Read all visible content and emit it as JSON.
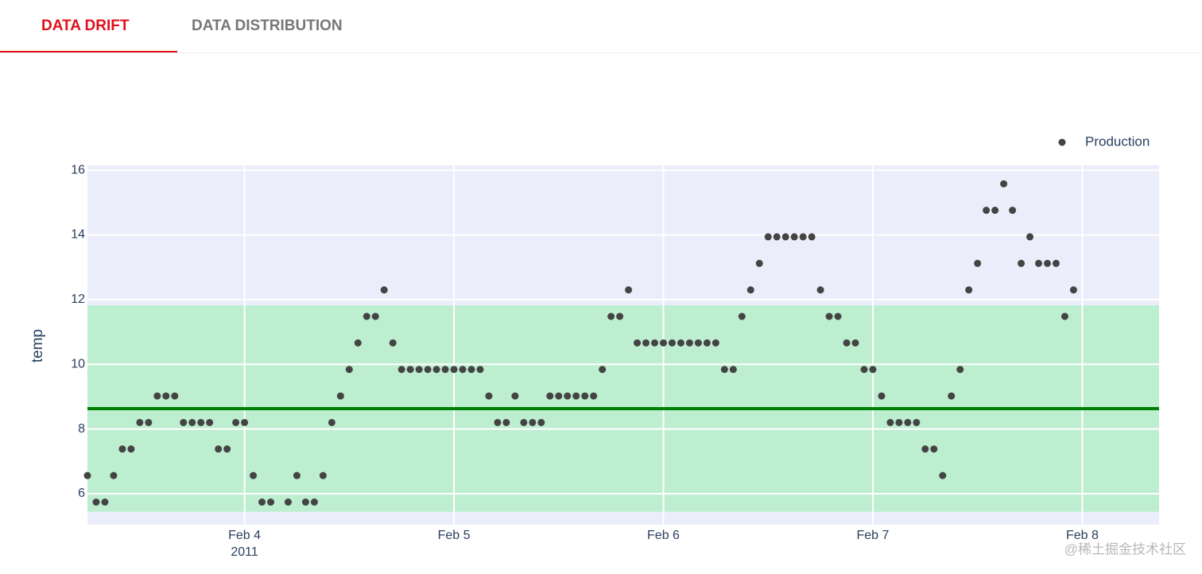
{
  "tabs": [
    {
      "label": "DATA DRIFT",
      "active": true
    },
    {
      "label": "DATA DISTRIBUTION",
      "active": false
    }
  ],
  "watermark": "@稀土掘金技术社区",
  "chart_data": {
    "type": "scatter",
    "yaxis_title": "temp",
    "x": [
      "2011-02-03 06:00",
      "2011-02-03 07:00",
      "2011-02-03 08:00",
      "2011-02-03 09:00",
      "2011-02-03 10:00",
      "2011-02-03 11:00",
      "2011-02-03 12:00",
      "2011-02-03 13:00",
      "2011-02-03 14:00",
      "2011-02-03 15:00",
      "2011-02-03 16:00",
      "2011-02-03 17:00",
      "2011-02-03 18:00",
      "2011-02-03 19:00",
      "2011-02-03 20:00",
      "2011-02-03 21:00",
      "2011-02-03 22:00",
      "2011-02-03 23:00",
      "2011-02-04 00:00",
      "2011-02-04 01:00",
      "2011-02-04 02:00",
      "2011-02-04 03:00",
      "2011-02-04 05:00",
      "2011-02-04 06:00",
      "2011-02-04 07:00",
      "2011-02-04 08:00",
      "2011-02-04 09:00",
      "2011-02-04 10:00",
      "2011-02-04 11:00",
      "2011-02-04 12:00",
      "2011-02-04 13:00",
      "2011-02-04 14:00",
      "2011-02-04 15:00",
      "2011-02-04 16:00",
      "2011-02-04 17:00",
      "2011-02-04 18:00",
      "2011-02-04 19:00",
      "2011-02-04 20:00",
      "2011-02-04 21:00",
      "2011-02-04 22:00",
      "2011-02-04 23:00",
      "2011-02-05 00:00",
      "2011-02-05 01:00",
      "2011-02-05 02:00",
      "2011-02-05 03:00",
      "2011-02-05 04:00",
      "2011-02-05 05:00",
      "2011-02-05 06:00",
      "2011-02-05 07:00",
      "2011-02-05 08:00",
      "2011-02-05 09:00",
      "2011-02-05 10:00",
      "2011-02-05 11:00",
      "2011-02-05 12:00",
      "2011-02-05 13:00",
      "2011-02-05 14:00",
      "2011-02-05 15:00",
      "2011-02-05 16:00",
      "2011-02-05 17:00",
      "2011-02-05 18:00",
      "2011-02-05 19:00",
      "2011-02-05 20:00",
      "2011-02-05 21:00",
      "2011-02-05 22:00",
      "2011-02-05 23:00",
      "2011-02-06 00:00",
      "2011-02-06 01:00",
      "2011-02-06 02:00",
      "2011-02-06 03:00",
      "2011-02-06 04:00",
      "2011-02-06 05:00",
      "2011-02-06 06:00",
      "2011-02-06 07:00",
      "2011-02-06 08:00",
      "2011-02-06 09:00",
      "2011-02-06 10:00",
      "2011-02-06 11:00",
      "2011-02-06 12:00",
      "2011-02-06 13:00",
      "2011-02-06 14:00",
      "2011-02-06 15:00",
      "2011-02-06 16:00",
      "2011-02-06 17:00",
      "2011-02-06 18:00",
      "2011-02-06 19:00",
      "2011-02-06 20:00",
      "2011-02-06 21:00",
      "2011-02-06 22:00",
      "2011-02-06 23:00",
      "2011-02-07 00:00",
      "2011-02-07 01:00",
      "2011-02-07 02:00",
      "2011-02-07 03:00",
      "2011-02-07 04:00",
      "2011-02-07 05:00",
      "2011-02-07 06:00",
      "2011-02-07 07:00",
      "2011-02-07 08:00",
      "2011-02-07 09:00",
      "2011-02-07 10:00",
      "2011-02-07 11:00",
      "2011-02-07 12:00",
      "2011-02-07 13:00",
      "2011-02-07 14:00",
      "2011-02-07 15:00",
      "2011-02-07 16:00",
      "2011-02-07 17:00",
      "2011-02-07 18:00",
      "2011-02-07 19:00",
      "2011-02-07 20:00",
      "2011-02-07 21:00",
      "2011-02-07 22:00",
      "2011-02-07 23:00"
    ],
    "series": [
      {
        "name": "Production",
        "color": "#444444",
        "values": [
          6.56,
          5.74,
          5.74,
          6.56,
          7.38,
          7.38,
          8.2,
          8.2,
          9.02,
          9.02,
          9.02,
          8.2,
          8.2,
          8.2,
          8.2,
          7.38,
          7.38,
          8.2,
          8.2,
          6.56,
          5.74,
          5.74,
          5.74,
          6.56,
          5.74,
          5.74,
          6.56,
          8.2,
          9.02,
          9.84,
          10.66,
          11.48,
          11.48,
          12.3,
          10.66,
          9.84,
          9.84,
          9.84,
          9.84,
          9.84,
          9.84,
          9.84,
          9.84,
          9.84,
          9.84,
          9.02,
          8.2,
          8.2,
          9.02,
          8.2,
          8.2,
          8.2,
          9.02,
          9.02,
          9.02,
          9.02,
          9.02,
          9.02,
          9.84,
          11.48,
          11.48,
          12.3,
          10.66,
          10.66,
          10.66,
          10.66,
          10.66,
          10.66,
          10.66,
          10.66,
          10.66,
          10.66,
          9.84,
          9.84,
          11.48,
          12.3,
          13.12,
          13.94,
          13.94,
          13.94,
          13.94,
          13.94,
          13.94,
          12.3,
          11.48,
          11.48,
          10.66,
          10.66,
          9.84,
          9.84,
          9.02,
          8.2,
          8.2,
          8.2,
          8.2,
          7.38,
          7.38,
          6.56,
          9.02,
          9.84,
          12.3,
          13.12,
          14.76,
          14.76,
          15.58,
          14.76,
          13.12,
          13.94,
          13.12,
          13.12,
          13.12,
          11.48,
          12.3
        ]
      }
    ],
    "xlim": [
      "2011-02-03 06:00",
      "2011-02-08 08:48"
    ],
    "xticks": [
      {
        "value": "2011-02-04 00:00",
        "label": "Feb 4",
        "year": "2011"
      },
      {
        "value": "2011-02-05 00:00",
        "label": "Feb 5"
      },
      {
        "value": "2011-02-06 00:00",
        "label": "Feb 6"
      },
      {
        "value": "2011-02-07 00:00",
        "label": "Feb 7"
      },
      {
        "value": "2011-02-08 00:00",
        "label": "Feb 8"
      }
    ],
    "ylim": [
      5.04,
      16.15
    ],
    "yticks": [
      6,
      8,
      10,
      12,
      14,
      16
    ],
    "grid": true,
    "legend": "top-right",
    "plot_bgcolor": "#ecedfa",
    "reference_band": {
      "range": [
        5.44,
        11.82
      ],
      "color": "#bdeed0"
    },
    "reference_line": {
      "value": 8.63,
      "color": "#008000"
    }
  }
}
